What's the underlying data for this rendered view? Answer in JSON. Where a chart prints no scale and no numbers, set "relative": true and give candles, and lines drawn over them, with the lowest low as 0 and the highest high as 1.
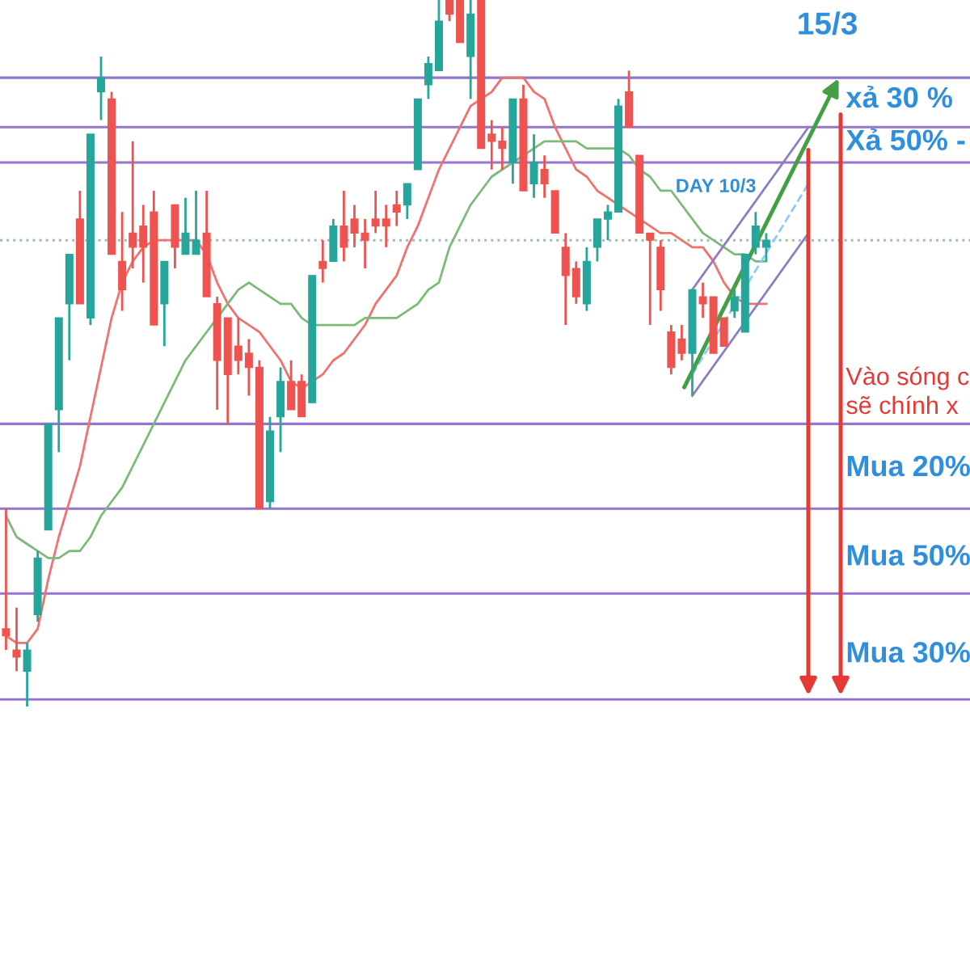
{
  "chart_data": {
    "type": "candlestick",
    "relative": true,
    "tick_labels": false,
    "categories": [
      null,
      null,
      null,
      null,
      null,
      null,
      null,
      null,
      null,
      null,
      null,
      null,
      null,
      null,
      null,
      null,
      null,
      null,
      null,
      null,
      null,
      null,
      null,
      null,
      null,
      null,
      null,
      null,
      null,
      null,
      null,
      null,
      null,
      null,
      null,
      null,
      null,
      null,
      null,
      null,
      null,
      null,
      null,
      null,
      null,
      null,
      null,
      null,
      null,
      null,
      null,
      null,
      null,
      null,
      null,
      null,
      null,
      null,
      null,
      null,
      null,
      null,
      null,
      null,
      null,
      null,
      null,
      null,
      null,
      null,
      null,
      null,
      null,
      null,
      null,
      null,
      null,
      null,
      null,
      null
    ],
    "ohlc": [
      [
        0.11,
        0.28,
        0.08,
        0.1
      ],
      [
        0.08,
        0.14,
        0.05,
        0.07
      ],
      [
        0.05,
        0.09,
        0,
        0.08
      ],
      [
        0.13,
        0.22,
        0.12,
        0.21
      ],
      [
        0.25,
        0.4,
        0.25,
        0.4
      ],
      [
        0.42,
        0.55,
        0.36,
        0.55
      ],
      [
        0.57,
        0.64,
        0.49,
        0.64
      ],
      [
        0.69,
        0.73,
        0.57,
        0.57
      ],
      [
        0.55,
        0.81,
        0.54,
        0.81
      ],
      [
        0.87,
        0.92,
        0.83,
        0.89
      ],
      [
        0.86,
        0.87,
        0.64,
        0.64
      ],
      [
        0.63,
        0.7,
        0.56,
        0.59
      ],
      [
        0.67,
        0.8,
        0.62,
        0.65
      ],
      [
        0.68,
        0.71,
        0.6,
        0.65
      ],
      [
        0.7,
        0.73,
        0.54,
        0.54
      ],
      [
        0.57,
        0.63,
        0.51,
        0.63
      ],
      [
        0.71,
        0.71,
        0.62,
        0.65
      ],
      [
        0.64,
        0.72,
        0.64,
        0.67
      ],
      [
        0.64,
        0.73,
        0.64,
        0.66
      ],
      [
        0.67,
        0.73,
        0.58,
        0.58
      ],
      [
        0.57,
        0.58,
        0.42,
        0.49
      ],
      [
        0.55,
        0.55,
        0.4,
        0.47
      ],
      [
        0.51,
        0.55,
        0.47,
        0.49
      ],
      [
        0.5,
        0.52,
        0.44,
        0.48
      ],
      [
        0.48,
        0.49,
        0.28,
        0.28
      ],
      [
        0.29,
        0.41,
        0.28,
        0.39
      ],
      [
        0.41,
        0.48,
        0.36,
        0.46
      ],
      [
        0.46,
        0.49,
        0.42,
        0.42
      ],
      [
        0.46,
        0.47,
        0.41,
        0.41
      ],
      [
        0.43,
        0.61,
        0.43,
        0.61
      ],
      [
        0.63,
        0.66,
        0.6,
        0.62
      ],
      [
        0.63,
        0.69,
        0.63,
        0.68
      ],
      [
        0.68,
        0.73,
        0.63,
        0.65
      ],
      [
        0.69,
        0.71,
        0.65,
        0.67
      ],
      [
        0.67,
        0.69,
        0.62,
        0.66
      ],
      [
        0.69,
        0.73,
        0.67,
        0.68
      ],
      [
        0.69,
        0.71,
        0.65,
        0.68
      ],
      [
        0.71,
        0.73,
        0.68,
        0.7
      ],
      [
        0.71,
        0.74,
        0.69,
        0.74
      ],
      [
        0.76,
        0.86,
        0.76,
        0.86
      ],
      [
        0.88,
        0.92,
        0.86,
        0.91
      ],
      [
        0.9,
        1.0,
        0.9,
        0.97
      ],
      [
        1.0,
        1.0,
        0.97,
        0.98
      ],
      [
        1.0,
        1.0,
        0.94,
        0.94
      ],
      [
        0.92,
        1.0,
        0.86,
        0.98
      ],
      [
        1.0,
        1.0,
        0.79,
        0.79
      ],
      [
        0.81,
        0.83,
        0.76,
        0.8
      ],
      [
        0.8,
        0.82,
        0.76,
        0.79
      ],
      [
        0.77,
        0.86,
        0.74,
        0.86
      ],
      [
        0.86,
        0.88,
        0.73,
        0.73
      ],
      [
        0.74,
        0.81,
        0.72,
        0.77
      ],
      [
        0.76,
        0.78,
        0.72,
        0.74
      ],
      [
        0.73,
        0.73,
        0.67,
        0.67
      ],
      [
        0.65,
        0.67,
        0.54,
        0.61
      ],
      [
        0.62,
        0.63,
        0.57,
        0.58
      ],
      [
        0.57,
        0.65,
        0.56,
        0.63
      ],
      [
        0.65,
        0.69,
        0.63,
        0.69
      ],
      [
        0.69,
        0.71,
        0.66,
        0.7
      ],
      [
        0.7,
        0.86,
        0.7,
        0.85
      ],
      [
        0.87,
        0.9,
        0.82,
        0.82
      ],
      [
        0.78,
        0.78,
        0.67,
        0.67
      ],
      [
        0.67,
        0.67,
        0.54,
        0.66
      ],
      [
        0.65,
        0.66,
        0.56,
        0.59
      ],
      [
        0.53,
        0.54,
        0.47,
        0.48
      ],
      [
        0.52,
        0.54,
        0.49,
        0.5
      ],
      [
        0.5,
        0.59,
        0.44,
        0.59
      ],
      [
        0.58,
        0.6,
        0.55,
        0.57
      ],
      [
        0.58,
        0.58,
        0.5,
        0.5
      ],
      [
        0.55,
        0.55,
        0.51,
        0.51
      ],
      [
        0.56,
        0.59,
        0.55,
        0.58
      ],
      [
        0.53,
        0.64,
        0.53,
        0.64
      ],
      [
        0.65,
        0.7,
        0.64,
        0.68
      ],
      [
        0.65,
        0.67,
        0.63,
        0.66
      ],
      null,
      null,
      null,
      null,
      null,
      null,
      null
    ],
    "colors": [
      "#ef5350",
      "#ef5350",
      "#26a69a",
      "#26a69a",
      "#26a69a",
      "#26a69a",
      "#26a69a",
      "#ef5350",
      "#26a69a",
      "#26a69a",
      "#ef5350",
      "#ef5350",
      "#ef5350",
      "#ef5350",
      "#ef5350",
      "#26a69a",
      "#ef5350",
      "#26a69a",
      "#26a69a",
      "#ef5350",
      "#ef5350",
      "#ef5350",
      "#ef5350",
      "#ef5350",
      "#ef5350",
      "#26a69a",
      "#26a69a",
      "#ef5350",
      "#ef5350",
      "#26a69a",
      "#ef5350",
      "#26a69a",
      "#ef5350",
      "#ef5350",
      "#ef5350",
      "#ef5350",
      "#ef5350",
      "#ef5350",
      "#26a69a",
      "#26a69a",
      "#26a69a",
      "#26a69a",
      "#ef5350",
      "#ef5350",
      "#26a69a",
      "#ef5350",
      "#ef5350",
      "#ef5350",
      "#26a69a",
      "#ef5350",
      "#26a69a",
      "#ef5350",
      "#ef5350",
      "#ef5350",
      "#ef5350",
      "#26a69a",
      "#26a69a",
      "#26a69a",
      "#26a69a",
      "#ef5350",
      "#ef5350",
      "#ef5350",
      "#ef5350",
      "#ef5350",
      "#ef5350",
      "#26a69a",
      "#ef5350",
      "#ef5350",
      "#ef5350",
      "#26a69a",
      "#26a69a",
      "#26a69a",
      "#26a69a",
      null,
      null,
      null,
      null,
      null,
      null,
      null
    ],
    "series": [
      {
        "type": "line",
        "color": "#f0716e",
        "values": [
          0.1,
          0.09,
          0.09,
          0.11,
          0.18,
          0.24,
          0.29,
          0.34,
          0.41,
          0.48,
          0.55,
          0.6,
          0.63,
          0.65,
          0.66,
          0.66,
          0.66,
          0.66,
          0.66,
          0.64,
          0.6,
          0.57,
          0.55,
          0.54,
          0.53,
          0.51,
          0.49,
          0.46,
          0.45,
          0.46,
          0.47,
          0.49,
          0.5,
          0.52,
          0.54,
          0.57,
          0.59,
          0.61,
          0.65,
          0.68,
          0.72,
          0.76,
          0.79,
          0.82,
          0.85,
          0.86,
          0.87,
          0.89,
          0.89,
          0.89,
          0.87,
          0.86,
          0.82,
          0.79,
          0.76,
          0.75,
          0.73,
          0.72,
          0.71,
          0.7,
          0.69,
          0.68,
          0.67,
          0.67,
          0.66,
          0.65,
          0.65,
          0.63,
          0.6,
          0.58,
          0.57,
          0.57,
          0.57,
          null,
          null,
          null,
          null,
          null,
          null,
          null
        ]
      },
      {
        "type": "line",
        "color": "#7cba7a",
        "values": [
          0.27,
          0.24,
          0.23,
          0.22,
          0.21,
          0.21,
          0.22,
          0.22,
          0.24,
          0.27,
          0.29,
          0.31,
          0.34,
          0.37,
          0.4,
          0.43,
          0.46,
          0.49,
          0.51,
          0.53,
          0.55,
          0.57,
          0.59,
          0.6,
          0.59,
          0.58,
          0.57,
          0.57,
          0.55,
          0.54,
          0.54,
          0.54,
          0.54,
          0.54,
          0.55,
          0.55,
          0.55,
          0.55,
          0.56,
          0.57,
          0.59,
          0.6,
          0.65,
          0.68,
          0.71,
          0.73,
          0.75,
          0.76,
          0.77,
          0.78,
          0.79,
          0.8,
          0.8,
          0.8,
          0.8,
          0.79,
          0.79,
          0.79,
          0.79,
          0.78,
          0.76,
          0.75,
          0.73,
          0.73,
          0.71,
          0.69,
          0.67,
          0.66,
          0.65,
          0.64,
          0.64,
          0.63,
          0.63,
          null,
          null,
          null,
          null,
          null,
          null,
          null
        ]
      },
      {
        "type": "line",
        "color": "#8e7cc3",
        "values": [
          null,
          null,
          null,
          null,
          null,
          null,
          null,
          null,
          null,
          null,
          null,
          null,
          null,
          null,
          null,
          null,
          null,
          null,
          null,
          null,
          null,
          null,
          null,
          null,
          null,
          null,
          null,
          null,
          null,
          null,
          null,
          null,
          null,
          null,
          null,
          null,
          null,
          null,
          null,
          null,
          null,
          null,
          null,
          null,
          null,
          null,
          null,
          null,
          null,
          null,
          null,
          null,
          null,
          null,
          null,
          null,
          null,
          null,
          null,
          null,
          null,
          null,
          null,
          null,
          null,
          0.59,
          null,
          null,
          null,
          null,
          null,
          null,
          null,
          null,
          null,
          null,
          0.82,
          null,
          null,
          null
        ]
      },
      {
        "type": "line",
        "color": "#8e7cc3",
        "values": [
          null,
          null,
          null,
          null,
          null,
          null,
          null,
          null,
          null,
          null,
          null,
          null,
          null,
          null,
          null,
          null,
          null,
          null,
          null,
          null,
          null,
          null,
          null,
          null,
          null,
          null,
          null,
          null,
          null,
          null,
          null,
          null,
          null,
          null,
          null,
          null,
          null,
          null,
          null,
          null,
          null,
          null,
          null,
          null,
          null,
          null,
          null,
          null,
          null,
          null,
          null,
          null,
          null,
          null,
          null,
          null,
          null,
          null,
          null,
          null,
          null,
          null,
          null,
          null,
          null,
          0.44,
          null,
          null,
          null,
          null,
          null,
          null,
          null,
          null,
          null,
          null,
          0.67,
          null,
          null,
          null
        ]
      },
      {
        "type": "line",
        "color": "#90caf9",
        "line_style": "dashed",
        "values": [
          null,
          null,
          null,
          null,
          null,
          null,
          null,
          null,
          null,
          null,
          null,
          null,
          null,
          null,
          null,
          null,
          null,
          null,
          null,
          null,
          null,
          null,
          null,
          null,
          null,
          null,
          null,
          null,
          null,
          null,
          null,
          null,
          null,
          null,
          null,
          null,
          null,
          null,
          null,
          null,
          null,
          null,
          null,
          null,
          null,
          null,
          null,
          null,
          null,
          null,
          null,
          null,
          null,
          null,
          null,
          null,
          null,
          null,
          null,
          null,
          null,
          null,
          null,
          null,
          null,
          0.47,
          null,
          null,
          null,
          null,
          null,
          null,
          null,
          null,
          null,
          null,
          0.74,
          null,
          null,
          null
        ]
      }
    ],
    "ref_lines": [
      {
        "axis": "y",
        "value": 0.89,
        "color": "#9575cd"
      },
      {
        "axis": "y",
        "value": 0.82,
        "color": "#9575cd"
      },
      {
        "axis": "y",
        "value": 0.77,
        "color": "#9575cd"
      },
      {
        "axis": "y",
        "value": 0.66,
        "color": "#9fbfae",
        "line_style": "dotted"
      },
      {
        "axis": "y",
        "value": 0.4,
        "color": "#9575cd"
      },
      {
        "axis": "y",
        "value": 0.28,
        "color": "#9575cd"
      },
      {
        "axis": "y",
        "value": 0.16,
        "color": "#9575cd"
      },
      {
        "axis": "y",
        "value": 0.01,
        "color": "#9575cd"
      }
    ],
    "annotations": [
      "15/3",
      "xả 30 %",
      "Xả 50% -",
      "DAY 10/3",
      "Vào sóng c",
      "sẽ chính x",
      "Mua 20%",
      "Mua 50%",
      "Mua 30%"
    ]
  }
}
